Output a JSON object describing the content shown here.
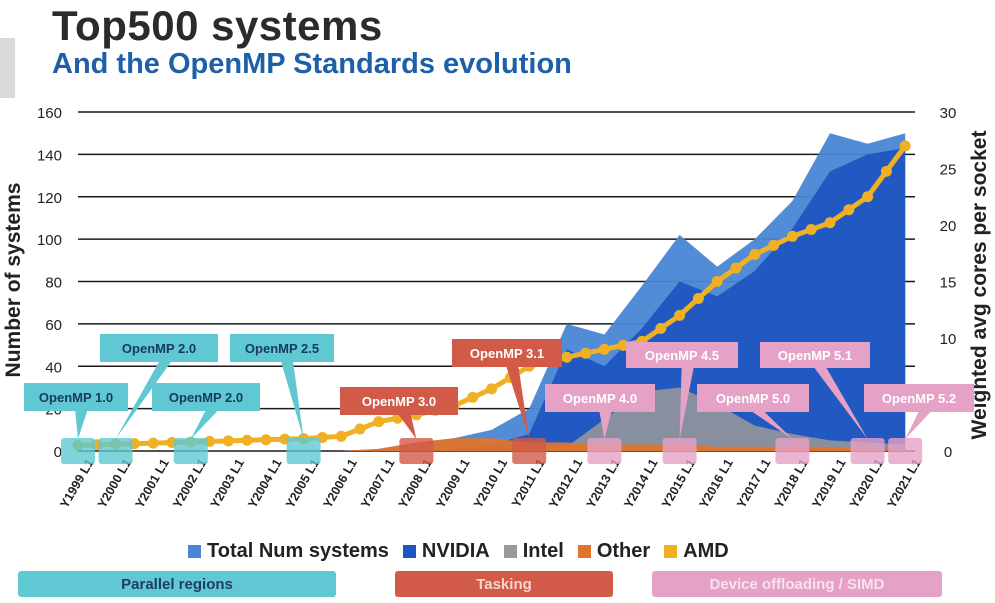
{
  "header": {
    "title": "Top500 systems",
    "subtitle": "And the OpenMP Standards evolution"
  },
  "chart_data": {
    "type": "area",
    "ylabel": "Number of systems",
    "y2label": "Weighted avg cores per socket",
    "ylim": [
      0,
      160
    ],
    "y2lim": [
      0,
      30
    ],
    "yticks": [
      0,
      20,
      40,
      60,
      80,
      100,
      120,
      140,
      160
    ],
    "y2ticks": [
      0,
      5,
      10,
      15,
      20,
      25,
      30
    ],
    "grid": true,
    "legend_placement": "bottom",
    "categories": [
      "Y1999 L1",
      "Y2000 L1",
      "Y2001 L1",
      "Y2002 L1",
      "Y2003 L1",
      "Y2004 L1",
      "Y2005 L1",
      "Y2006 L1",
      "Y2007 L1",
      "Y2008 L1",
      "Y2009 L1",
      "Y2010 L1",
      "Y2011 L1",
      "Y2012 L1",
      "Y2013 L1",
      "Y2014 L1",
      "Y2015 L1",
      "Y2016 L1",
      "Y2017 L1",
      "Y2018 L1",
      "Y2019 L1",
      "Y2020 L1",
      "Y2021 L1"
    ],
    "series": [
      {
        "name": "Total Num systems",
        "color": "#4a86d4",
        "axis": "left",
        "kind": "area",
        "values": [
          0,
          0,
          0,
          0,
          0,
          0,
          0,
          0,
          1,
          4,
          6,
          10,
          20,
          60,
          55,
          78,
          102,
          87,
          100,
          118,
          150,
          145,
          150
        ]
      },
      {
        "name": "NVIDIA",
        "color": "#1f55c0",
        "axis": "left",
        "kind": "area",
        "values": [
          0,
          0,
          0,
          0,
          0,
          0,
          0,
          0,
          0,
          0,
          1,
          3,
          8,
          48,
          40,
          58,
          80,
          73,
          85,
          105,
          132,
          140,
          143
        ]
      },
      {
        "name": "Intel",
        "color": "#9a9a9a",
        "axis": "left",
        "kind": "area",
        "values": [
          0,
          0,
          0,
          0,
          0,
          0,
          0,
          0,
          0,
          0,
          0,
          0,
          0,
          2,
          15,
          28,
          30,
          22,
          12,
          8,
          5,
          4,
          3
        ]
      },
      {
        "name": "Other",
        "color": "#e0742c",
        "axis": "left",
        "kind": "area",
        "values": [
          0,
          0,
          0,
          0,
          0,
          0,
          0,
          0,
          1,
          4,
          6,
          6,
          4,
          4,
          3,
          3,
          3,
          2,
          2,
          2,
          2,
          1,
          1
        ]
      },
      {
        "name": "AMD",
        "color": "#f0b024",
        "axis": "right",
        "kind": "line",
        "values": [
          0.5,
          0.6,
          0.7,
          0.8,
          0.9,
          1.0,
          1.1,
          1.3,
          2.6,
          3.2,
          4.0,
          5.5,
          7.5,
          8.3,
          9.0,
          9.7,
          12.0,
          15.0,
          17.4,
          19.0,
          20.2,
          22.5,
          27.0
        ]
      }
    ],
    "annotations": [
      {
        "label": "OpenMP 1.0",
        "category": "Y1999 L1",
        "group": "parallel"
      },
      {
        "label": "OpenMP 2.0",
        "category": "Y2000 L1",
        "group": "parallel"
      },
      {
        "label": "OpenMP 2.0",
        "category": "Y2002 L1",
        "group": "parallel"
      },
      {
        "label": "OpenMP 2.5",
        "category": "Y2005 L1",
        "group": "parallel"
      },
      {
        "label": "OpenMP 3.0",
        "category": "Y2008 L1",
        "group": "tasking"
      },
      {
        "label": "OpenMP 3.1",
        "category": "Y2011 L1",
        "group": "tasking"
      },
      {
        "label": "OpenMP 4.0",
        "category": "Y2013 L1",
        "group": "device"
      },
      {
        "label": "OpenMP 4.5",
        "category": "Y2015 L1",
        "group": "device"
      },
      {
        "label": "OpenMP 5.0",
        "category": "Y2018 L1",
        "group": "device"
      },
      {
        "label": "OpenMP 5.1",
        "category": "Y2020 L1",
        "group": "device"
      },
      {
        "label": "OpenMP 5.2",
        "category": "Y2021 L1",
        "group": "device"
      }
    ],
    "groups": {
      "parallel": {
        "label": "Parallel regions",
        "color": "#5fc8d2",
        "text_color": "#1f3d6a"
      },
      "tasking": {
        "label": "Tasking",
        "color": "#d15a48",
        "text_color": "#f4d6cf"
      },
      "device": {
        "label": "Device offloading / SIMD",
        "color": "#e6a1c6",
        "text_color": "#f6e3ee"
      }
    }
  },
  "legend": {
    "items": [
      {
        "label": "Total Num systems",
        "color": "#4a86d4"
      },
      {
        "label": "NVIDIA",
        "color": "#1f55c0"
      },
      {
        "label": "Intel",
        "color": "#9a9a9a"
      },
      {
        "label": "Other",
        "color": "#e0742c"
      },
      {
        "label": "AMD",
        "color": "#f0b024"
      }
    ]
  }
}
